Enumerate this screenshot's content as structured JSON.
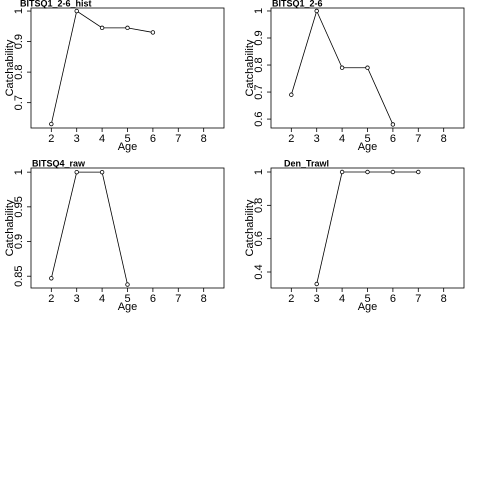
{
  "chart_data": [
    {
      "type": "line",
      "title": "BITSQ1_2-6_hist",
      "x_label": "Age",
      "y_label": "Catchability",
      "x": [
        2,
        3,
        4,
        5,
        6
      ],
      "values": [
        0.63,
        1.0,
        0.945,
        0.945,
        0.93
      ],
      "color": "#000000",
      "xlim": [
        1.2,
        8.8
      ],
      "xticks": [
        2,
        3,
        4,
        5,
        6,
        7,
        8
      ],
      "ylim": [
        0.617,
        1.01
      ],
      "yticks": [
        0.7,
        0.8,
        0.9,
        1.0
      ]
    },
    {
      "type": "line",
      "title": "BITSQ1_2-6",
      "x_label": "Age",
      "y_label": "Catchability",
      "x": [
        2,
        3,
        4,
        5,
        6
      ],
      "values": [
        0.69,
        1.0,
        0.79,
        0.79,
        0.58
      ],
      "color": "#000000",
      "xlim": [
        1.2,
        8.8
      ],
      "xticks": [
        2,
        3,
        4,
        5,
        6,
        7,
        8
      ],
      "ylim": [
        0.567,
        1.011
      ],
      "yticks": [
        0.6,
        0.7,
        0.8,
        0.9,
        1.0
      ]
    },
    {
      "type": "line",
      "title": "BITSQ4_raw",
      "x_label": "Age",
      "y_label": "Catchability",
      "x": [
        2,
        3,
        4,
        5
      ],
      "values": [
        0.847,
        1.0,
        1.0,
        0.838
      ],
      "color": "#000000",
      "xlim": [
        1.2,
        8.8
      ],
      "xticks": [
        2,
        3,
        4,
        5,
        6,
        7,
        8
      ],
      "ylim": [
        0.833,
        1.006
      ],
      "yticks": [
        0.85,
        0.9,
        0.95,
        1.0
      ]
    },
    {
      "type": "line",
      "title": "Den_Trawl",
      "x_label": "Age",
      "y_label": "Catchability",
      "x": [
        3,
        4,
        5,
        6,
        7
      ],
      "values": [
        0.328,
        1.0,
        1.0,
        1.0,
        1.0
      ],
      "color": "#000000",
      "xlim": [
        1.2,
        8.8
      ],
      "xticks": [
        2,
        3,
        4,
        5,
        6,
        7,
        8
      ],
      "ylim": [
        0.304,
        1.024
      ],
      "yticks": [
        0.4,
        0.6,
        0.8,
        1.0
      ]
    }
  ]
}
